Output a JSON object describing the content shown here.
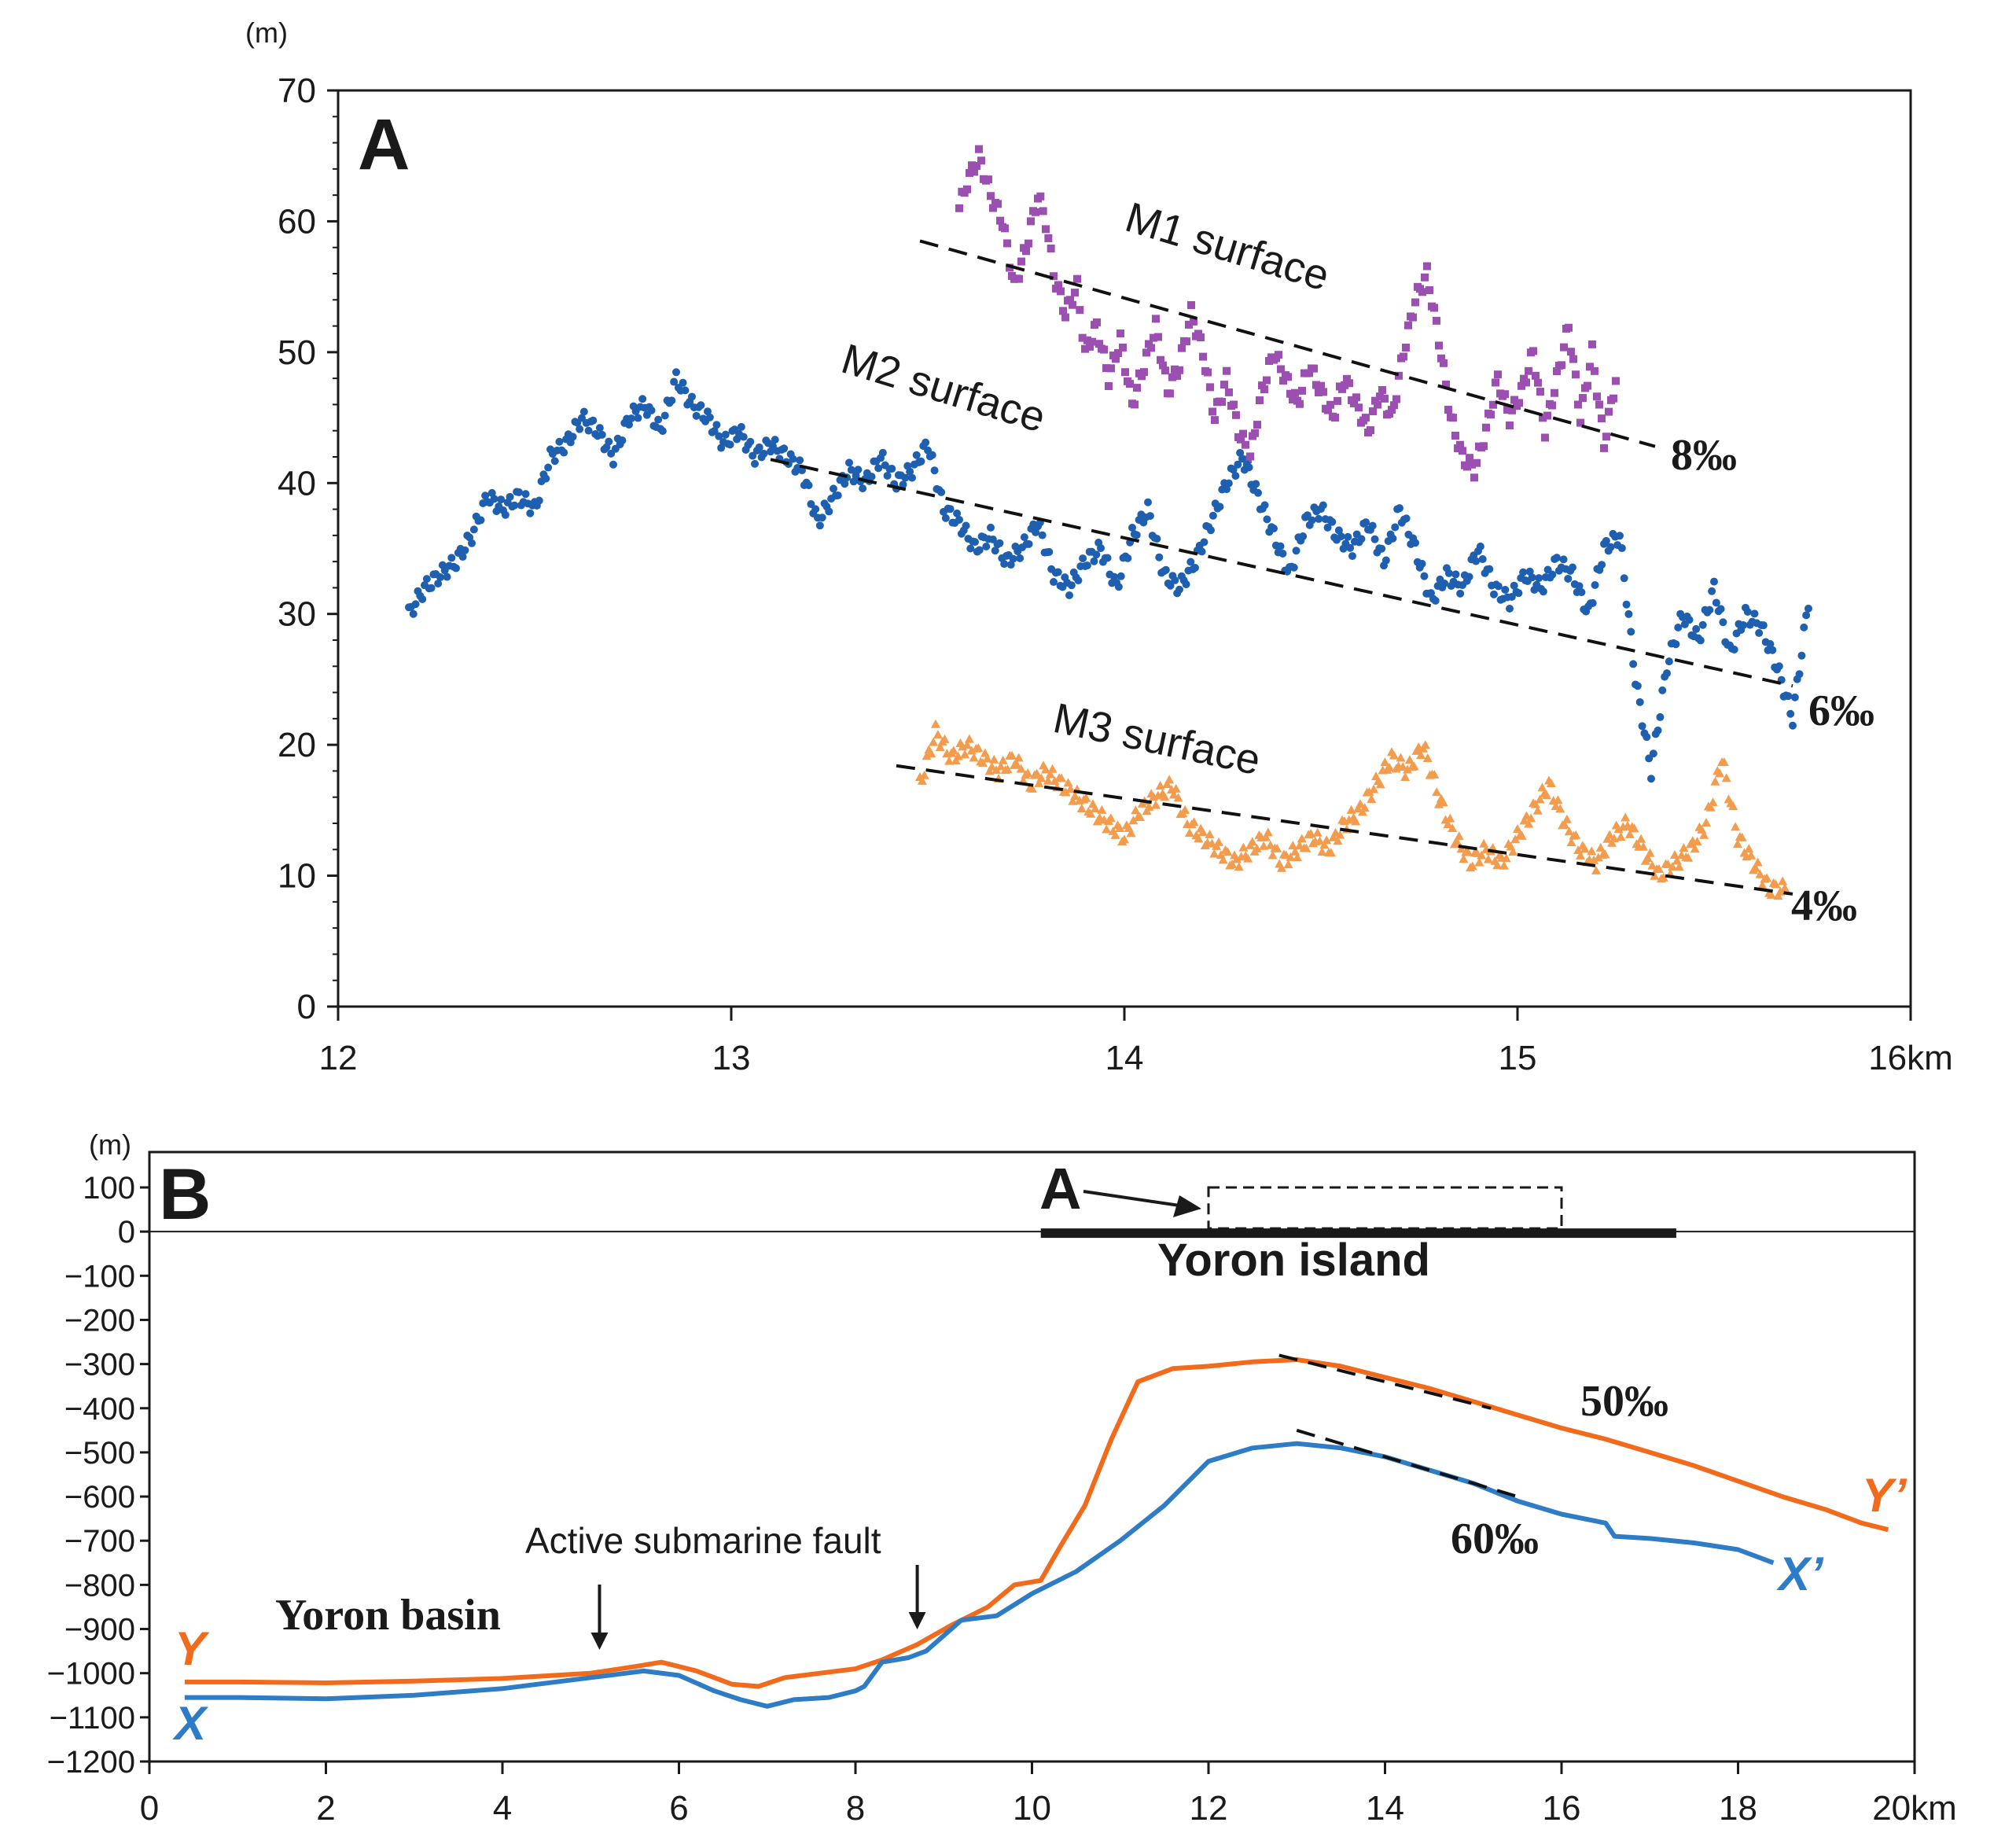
{
  "chart_data": [
    {
      "panel": "A",
      "type": "scatter",
      "y_unit": "(m)",
      "x_unit": "km",
      "xlim": [
        12,
        16
      ],
      "ylim": [
        0,
        70
      ],
      "x_ticks": [
        12,
        13,
        14,
        15,
        16
      ],
      "y_ticks": [
        0,
        10,
        20,
        30,
        40,
        50,
        60,
        70
      ],
      "series": [
        {
          "name": "M1 surface",
          "color": "#9b4fb0",
          "marker": "square",
          "x": [
            13.58,
            13.6,
            13.63,
            13.66,
            13.69,
            13.72,
            13.75,
            13.78,
            13.8,
            13.82,
            13.85,
            13.88,
            13.9,
            13.93,
            13.96,
            13.99,
            14.02,
            14.05,
            14.08,
            14.11,
            14.14,
            14.17,
            14.2,
            14.23,
            14.26,
            14.29,
            14.32,
            14.35,
            14.38,
            14.41,
            14.44,
            14.47,
            14.5,
            14.53,
            14.56,
            14.59,
            14.62,
            14.65,
            14.68,
            14.71,
            14.74,
            14.77,
            14.8,
            14.83,
            14.86,
            14.89,
            14.92,
            14.95,
            14.98,
            15.01,
            15.04,
            15.07,
            15.1,
            15.13,
            15.16,
            15.19,
            15.22,
            15.25
          ],
          "y": [
            61,
            63,
            65,
            62,
            60,
            55,
            58,
            62,
            60,
            56,
            53,
            55,
            50,
            52,
            48,
            51,
            46,
            49,
            52,
            47,
            49,
            53,
            50,
            45,
            48,
            44,
            42,
            47,
            50,
            48,
            46,
            49,
            47,
            45,
            48,
            46,
            44,
            47,
            45,
            50,
            54,
            56,
            51,
            45,
            42,
            41,
            44,
            48,
            45,
            47,
            50,
            44,
            48,
            52,
            45,
            50,
            43,
            48
          ]
        },
        {
          "name": "M2 surface",
          "color": "#1f5fb0",
          "marker": "circle",
          "x": [
            12.18,
            12.22,
            12.26,
            12.3,
            12.34,
            12.38,
            12.42,
            12.46,
            12.5,
            12.54,
            12.58,
            12.62,
            12.66,
            12.7,
            12.74,
            12.78,
            12.82,
            12.86,
            12.9,
            12.94,
            12.98,
            13.02,
            13.06,
            13.1,
            13.14,
            13.18,
            13.22,
            13.26,
            13.3,
            13.34,
            13.38,
            13.42,
            13.46,
            13.5,
            13.54,
            13.58,
            13.62,
            13.66,
            13.7,
            13.74,
            13.78,
            13.82,
            13.86,
            13.9,
            13.94,
            13.98,
            14.02,
            14.06,
            14.1,
            14.14,
            14.18,
            14.22,
            14.26,
            14.3,
            14.34,
            14.38,
            14.42,
            14.46,
            14.5,
            14.54,
            14.58,
            14.62,
            14.66,
            14.7,
            14.74,
            14.78,
            14.82,
            14.86,
            14.9,
            14.94,
            14.98,
            15.02,
            15.06,
            15.1,
            15.14,
            15.18,
            15.22,
            15.26,
            15.3,
            15.34,
            15.38,
            15.42,
            15.46,
            15.5,
            15.54,
            15.58,
            15.62,
            15.66,
            15.7,
            15.74
          ],
          "y": [
            30,
            32,
            33,
            34,
            36,
            39,
            38,
            39,
            38,
            42,
            43,
            45,
            44,
            42,
            45,
            46,
            44,
            48,
            46,
            45,
            43,
            44,
            42,
            43,
            42,
            41,
            37,
            39,
            41,
            40,
            42,
            40,
            41,
            43,
            38,
            37,
            35,
            36,
            34,
            35,
            37,
            33,
            32,
            34,
            35,
            32,
            36,
            38,
            33,
            32,
            34,
            37,
            40,
            42,
            39,
            36,
            33,
            37,
            38,
            36,
            35,
            37,
            34,
            38,
            35,
            31,
            33,
            32,
            35,
            32,
            31,
            33,
            32,
            34,
            33,
            30,
            35,
            36,
            25,
            18,
            26,
            30,
            28,
            32,
            27,
            30,
            29,
            26,
            22,
            31
          ]
        },
        {
          "name": "M3 surface",
          "color": "#f39c4d",
          "marker": "triangle",
          "x": [
            13.48,
            13.52,
            13.56,
            13.6,
            13.64,
            13.68,
            13.72,
            13.76,
            13.8,
            13.84,
            13.88,
            13.92,
            13.96,
            14.0,
            14.04,
            14.08,
            14.12,
            14.16,
            14.2,
            14.24,
            14.28,
            14.32,
            14.36,
            14.4,
            14.44,
            14.48,
            14.52,
            14.56,
            14.6,
            14.64,
            14.68,
            14.72,
            14.76,
            14.8,
            14.84,
            14.88,
            14.92,
            14.96,
            15.0,
            15.04,
            15.08,
            15.12,
            15.16,
            15.2,
            15.24,
            15.28,
            15.32,
            15.36,
            15.4,
            15.44,
            15.48,
            15.52,
            15.56,
            15.6,
            15.64,
            15.68
          ],
          "y": [
            17,
            21,
            19,
            20,
            19,
            18,
            19,
            17,
            18,
            17,
            16,
            15,
            14,
            13,
            15,
            16,
            17,
            14,
            13,
            12,
            11,
            12,
            13,
            11,
            12,
            13,
            12,
            14,
            15,
            17,
            19,
            18,
            20,
            16,
            13,
            11,
            12,
            11,
            13,
            15,
            17,
            14,
            12,
            11,
            13,
            14,
            12,
            10,
            11,
            12,
            14,
            19,
            13,
            11,
            9,
            9
          ]
        }
      ],
      "trendlines": [
        {
          "label": "8‰",
          "x": [
            13.48,
            15.35
          ],
          "y": [
            58.5,
            42.8
          ]
        },
        {
          "label": "6‰",
          "x": [
            13.1,
            15.7
          ],
          "y": [
            41.8,
            24.5
          ]
        },
        {
          "label": "4‰",
          "x": [
            13.42,
            15.7
          ],
          "y": [
            18.4,
            8.6
          ]
        }
      ],
      "annotations": {
        "panel_letter": "A",
        "m1_label": "M1 surface",
        "m2_label": "M2 surface",
        "m3_label": "M3 surface",
        "pct_8": "8‰",
        "pct_6": "6‰",
        "pct_4": "4‰"
      }
    },
    {
      "panel": "B",
      "type": "line",
      "y_unit": "(m)",
      "x_unit": "km",
      "xlim": [
        0,
        20
      ],
      "ylim": [
        -1200,
        120
      ],
      "x_ticks": [
        0,
        2,
        4,
        6,
        8,
        10,
        12,
        14,
        16,
        18,
        20
      ],
      "y_ticks": [
        100,
        0,
        -100,
        -200,
        -300,
        -400,
        -500,
        -600,
        -700,
        -800,
        -900,
        -1000,
        -1100,
        -1200
      ],
      "y_tick_labels": [
        "100",
        "0",
        "−100",
        "−200",
        "−300",
        "−400",
        "−500",
        "−600",
        "−700",
        "−800",
        "−900",
        "−1000",
        "−1100",
        "−1200"
      ],
      "series": [
        {
          "name": "Y",
          "end_label": "Y’",
          "color": "#f26a1b",
          "x": [
            0.4,
            1,
            2,
            3,
            4,
            5,
            5.5,
            5.8,
            6.2,
            6.6,
            6.9,
            7.2,
            7.6,
            8,
            8.3,
            8.7,
            9.1,
            9.5,
            9.8,
            10.1,
            10.3,
            10.6,
            10.9,
            11.2,
            11.6,
            12,
            12.5,
            13,
            13.5,
            14,
            14.5,
            15,
            15.5,
            16,
            16.5,
            17,
            17.5,
            18,
            18.5,
            19,
            19.4,
            19.7
          ],
          "y": [
            -1020,
            -1020,
            -1022,
            -1018,
            -1012,
            -1000,
            -985,
            -975,
            -995,
            -1025,
            -1030,
            -1010,
            -1000,
            -990,
            -970,
            -935,
            -890,
            -850,
            -800,
            -790,
            -720,
            -620,
            -470,
            -340,
            -310,
            -305,
            -295,
            -290,
            -305,
            -330,
            -355,
            -385,
            -415,
            -445,
            -470,
            -500,
            -530,
            -565,
            -600,
            -630,
            -660,
            -675
          ]
        },
        {
          "name": "X",
          "end_label": "X’",
          "color": "#2e7cc6",
          "x": [
            0.4,
            1,
            2,
            3,
            4,
            5,
            5.6,
            6,
            6.4,
            6.7,
            7,
            7.3,
            7.7,
            8,
            8.1,
            8.3,
            8.6,
            8.8,
            9.2,
            9.6,
            10,
            10.5,
            11,
            11.5,
            12,
            12.5,
            13,
            13.5,
            14,
            14.5,
            15,
            15.5,
            16,
            16.5,
            16.6,
            17,
            17.5,
            18,
            18.4
          ],
          "y": [
            -1055,
            -1055,
            -1058,
            -1050,
            -1035,
            -1010,
            -995,
            -1005,
            -1040,
            -1060,
            -1075,
            -1060,
            -1055,
            -1040,
            -1030,
            -975,
            -965,
            -950,
            -880,
            -870,
            -820,
            -770,
            -700,
            -620,
            -520,
            -490,
            -480,
            -490,
            -510,
            -540,
            -570,
            -610,
            -640,
            -660,
            -690,
            -695,
            -705,
            -720,
            -750
          ]
        }
      ],
      "trendlines": [
        {
          "label": "50‰",
          "x": [
            12.8,
            15.2
          ],
          "y": [
            -280,
            -400
          ]
        },
        {
          "label": "60‰",
          "x": [
            13.0,
            15.5
          ],
          "y": [
            -450,
            -600
          ]
        }
      ],
      "island": {
        "x": [
          10.1,
          17.3
        ],
        "label": "Yoron island"
      },
      "inset_box": {
        "x": [
          12.0,
          16.0
        ],
        "y": [
          0,
          100
        ],
        "label": "A"
      },
      "annotations": {
        "panel_letter": "B",
        "pct_50": "50‰",
        "pct_60": "60‰",
        "yoron_basin": "Yoron basin",
        "fault": "Active submarine fault",
        "basin_arrow_x": 5.1,
        "fault_arrow_x": 8.7
      }
    }
  ]
}
